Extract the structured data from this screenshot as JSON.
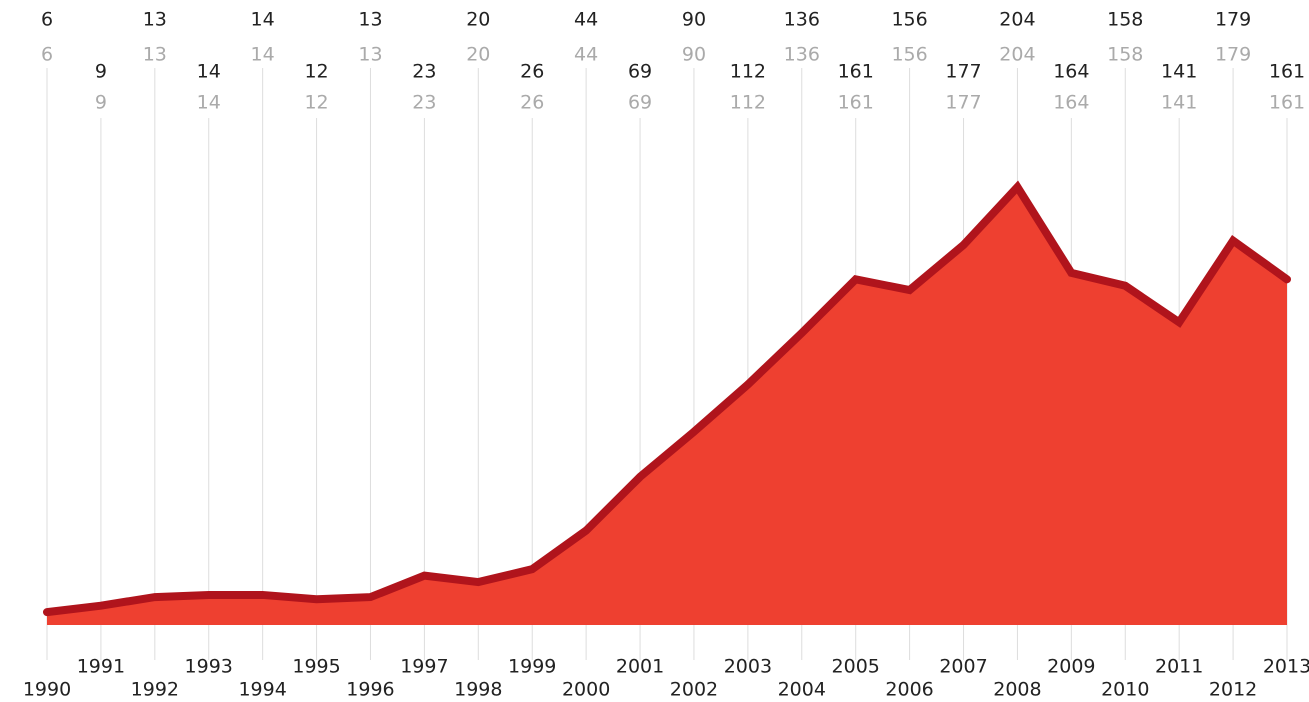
{
  "chart_data": {
    "type": "area",
    "x": [
      1990,
      1991,
      1992,
      1993,
      1994,
      1995,
      1996,
      1997,
      1998,
      1999,
      2000,
      2001,
      2002,
      2003,
      2004,
      2005,
      2006,
      2007,
      2008,
      2009,
      2010,
      2011,
      2012,
      2013
    ],
    "xlim": [
      1990,
      2013
    ],
    "xticks": [
      1990,
      1991,
      1992,
      1993,
      1994,
      1995,
      1996,
      1997,
      1998,
      1999,
      2000,
      2001,
      2002,
      2003,
      2004,
      2005,
      2006,
      2007,
      2008,
      2009,
      2010,
      2011,
      2012,
      2013
    ],
    "values": [
      6,
      9,
      13,
      14,
      14,
      12,
      13,
      23,
      20,
      26,
      44,
      69,
      90,
      112,
      136,
      161,
      156,
      177,
      204,
      164,
      158,
      141,
      179,
      161
    ],
    "ylim": [
      0,
      204
    ],
    "color": "#ee4030",
    "line_color": "#b0141c",
    "grid": true
  }
}
